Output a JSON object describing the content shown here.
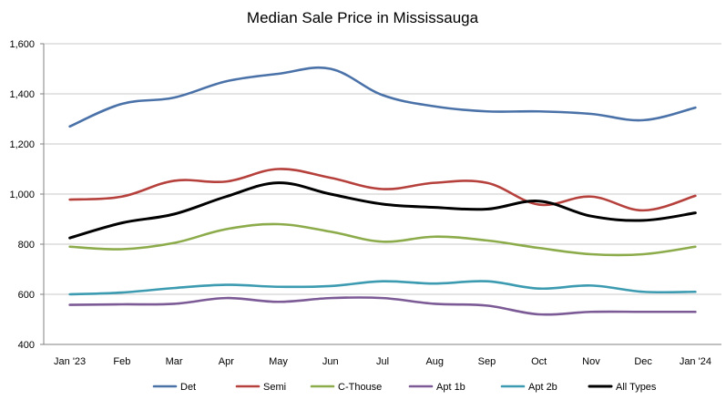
{
  "chart_data": {
    "type": "line",
    "title": "Median Sale Price in Mississauga",
    "xlabel": "",
    "ylabel": "",
    "categories": [
      "Jan '23",
      "Feb",
      "Mar",
      "Apr",
      "May",
      "Jun",
      "Jul",
      "Aug",
      "Sep",
      "Oct",
      "Nov",
      "Dec",
      "Jan '24"
    ],
    "ylim": [
      400,
      1600
    ],
    "yticks": [
      400,
      600,
      800,
      1000,
      1200,
      1400,
      1600
    ],
    "ytick_labels": [
      "400",
      "600",
      "800",
      "1,000",
      "1,200",
      "1,400",
      "1,600"
    ],
    "grid": true,
    "legend_position": "bottom",
    "series": [
      {
        "name": "Det",
        "color": "#4a72a8",
        "values": [
          1270,
          1360,
          1385,
          1450,
          1480,
          1500,
          1395,
          1350,
          1330,
          1330,
          1320,
          1295,
          1345
        ]
      },
      {
        "name": "Semi",
        "color": "#b5403c",
        "values": [
          978,
          990,
          1053,
          1050,
          1100,
          1065,
          1020,
          1045,
          1045,
          958,
          990,
          935,
          993
        ]
      },
      {
        "name": "C-Thouse",
        "color": "#8cab4a",
        "values": [
          790,
          780,
          805,
          860,
          880,
          850,
          810,
          830,
          815,
          785,
          760,
          760,
          790
        ]
      },
      {
        "name": "Apt 1b",
        "color": "#7b5a95",
        "values": [
          558,
          560,
          562,
          585,
          570,
          585,
          585,
          562,
          555,
          520,
          530,
          530,
          530
        ]
      },
      {
        "name": "Apt 2b",
        "color": "#3c9bb0",
        "values": [
          600,
          607,
          625,
          638,
          630,
          633,
          652,
          643,
          652,
          623,
          635,
          610,
          610
        ]
      },
      {
        "name": "All Types",
        "color": "#000000",
        "values": [
          825,
          885,
          920,
          990,
          1045,
          1000,
          960,
          947,
          940,
          972,
          912,
          895,
          925
        ]
      }
    ]
  }
}
